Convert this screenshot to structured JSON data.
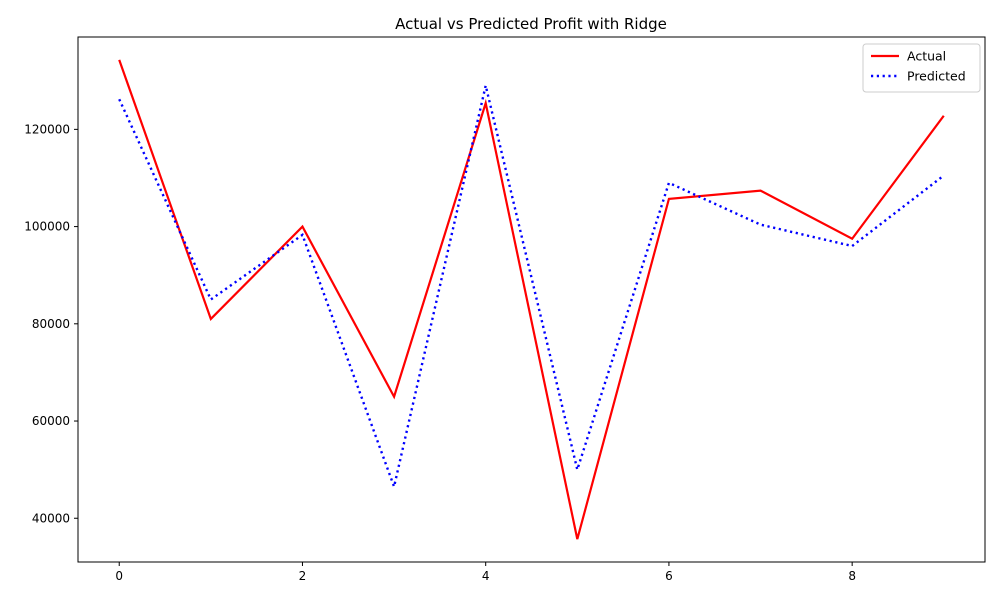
{
  "chart_data": {
    "type": "line",
    "title": "Actual vs Predicted Profit with Ridge",
    "xlabel": "",
    "ylabel": "",
    "x": [
      0,
      1,
      2,
      3,
      4,
      5,
      6,
      7,
      8,
      9
    ],
    "xlim": [
      -0.45,
      9.45
    ],
    "ylim": [
      31000,
      139000
    ],
    "xticks": [
      0,
      2,
      4,
      6,
      8
    ],
    "yticks": [
      40000,
      60000,
      80000,
      100000,
      120000
    ],
    "grid": false,
    "legend_position": "top-right",
    "series": [
      {
        "name": "Actual",
        "color": "#ff0000",
        "style": "solid",
        "values": [
          134300,
          81000,
          100000,
          65000,
          125400,
          35700,
          105700,
          107400,
          97500,
          122800
        ]
      },
      {
        "name": "Predicted",
        "color": "#0000ff",
        "style": "dotted",
        "values": [
          126200,
          85000,
          98300,
          46500,
          129000,
          50000,
          109000,
          100400,
          96000,
          110500
        ]
      }
    ]
  }
}
